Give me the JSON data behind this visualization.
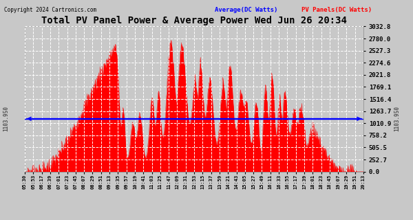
{
  "title": "Total PV Panel Power & Average Power Wed Jun 26 20:34",
  "copyright": "Copyright 2024 Cartronics.com",
  "legend_avg": "Average(DC Watts)",
  "legend_pv": "PV Panels(DC Watts)",
  "avg_value": 1103.95,
  "ymax": 3032.8,
  "ymin": 0.0,
  "yticks": [
    0.0,
    252.7,
    505.5,
    758.2,
    1010.9,
    1263.7,
    1516.4,
    1769.1,
    2021.8,
    2274.6,
    2527.3,
    2780.0,
    3032.8
  ],
  "xtick_labels": [
    "05:30",
    "05:53",
    "06:17",
    "06:39",
    "07:01",
    "07:23",
    "07:45",
    "08:07",
    "08:29",
    "08:51",
    "09:13",
    "09:35",
    "09:57",
    "10:19",
    "10:41",
    "11:03",
    "11:25",
    "11:47",
    "12:09",
    "12:31",
    "12:53",
    "13:15",
    "13:37",
    "13:59",
    "14:21",
    "14:43",
    "15:05",
    "15:27",
    "15:49",
    "16:11",
    "16:33",
    "16:55",
    "17:17",
    "17:39",
    "18:01",
    "18:23",
    "18:45",
    "19:07",
    "19:29",
    "19:51",
    "20:13"
  ],
  "bg_color": "#c8c8c8",
  "plot_bg_color": "#c8c8c8",
  "fill_color": "#ff0000",
  "avg_line_color": "#0000ff",
  "grid_color": "#ffffff",
  "title_color": "#000000",
  "copyright_color": "#000000",
  "avg_legend_color": "#0000ff",
  "pv_legend_color": "#ff0000",
  "label_color": "#555555"
}
